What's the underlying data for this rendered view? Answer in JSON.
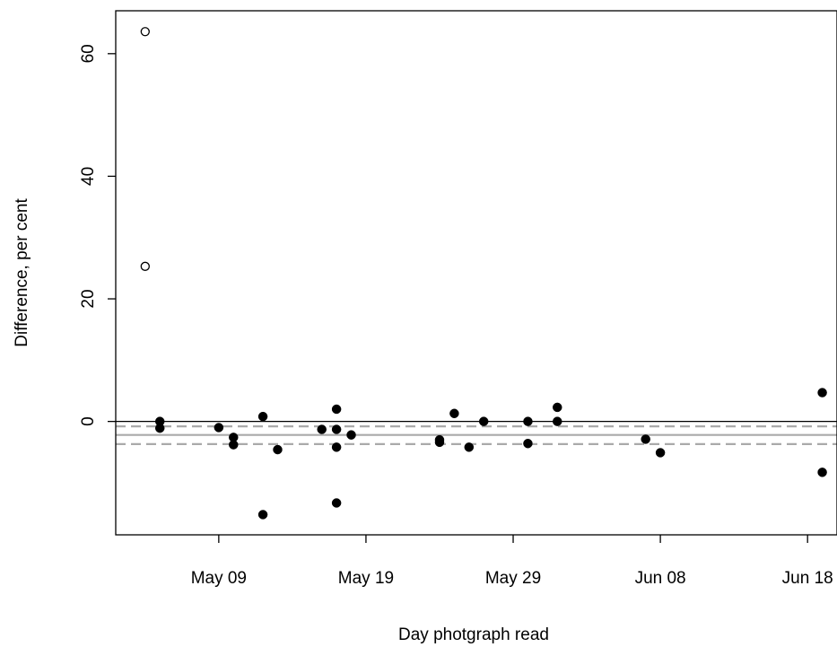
{
  "chart_data": {
    "type": "scatter",
    "title": "",
    "xlabel": "Day photgraph read",
    "ylabel": "Difference, per cent",
    "x_axis_type": "date",
    "xlim": [
      "2016-05-02",
      "2016-06-20"
    ],
    "ylim": [
      -18.5,
      67
    ],
    "x_ticks": [
      {
        "date": "2016-05-09",
        "label": "May 09"
      },
      {
        "date": "2016-05-19",
        "label": "May 19"
      },
      {
        "date": "2016-05-29",
        "label": "May 29"
      },
      {
        "date": "2016-06-08",
        "label": "Jun 08"
      },
      {
        "date": "2016-06-18",
        "label": "Jun 18"
      }
    ],
    "y_ticks": [
      {
        "value": 0,
        "label": "0"
      },
      {
        "value": 20,
        "label": "20"
      },
      {
        "value": 40,
        "label": "40"
      },
      {
        "value": 60,
        "label": "60"
      }
    ],
    "grid": false,
    "series": [
      {
        "marker": "open-circle",
        "points": [
          {
            "x": "2016-05-04",
            "y": 63.6
          },
          {
            "x": "2016-05-04",
            "y": 25.3
          }
        ]
      },
      {
        "marker": "filled-circle",
        "points": [
          {
            "x": "2016-05-05",
            "y": 0.0
          },
          {
            "x": "2016-05-05",
            "y": -1.1
          },
          {
            "x": "2016-05-09",
            "y": -1.0
          },
          {
            "x": "2016-05-10",
            "y": -2.6
          },
          {
            "x": "2016-05-10",
            "y": -3.8
          },
          {
            "x": "2016-05-12",
            "y": 0.8
          },
          {
            "x": "2016-05-12",
            "y": -15.2
          },
          {
            "x": "2016-05-13",
            "y": -4.6
          },
          {
            "x": "2016-05-16",
            "y": -1.3
          },
          {
            "x": "2016-05-17",
            "y": 2.0
          },
          {
            "x": "2016-05-17",
            "y": -1.3
          },
          {
            "x": "2016-05-17",
            "y": -4.2
          },
          {
            "x": "2016-05-17",
            "y": -13.3
          },
          {
            "x": "2016-05-18",
            "y": -2.2
          },
          {
            "x": "2016-05-24",
            "y": -3.0
          },
          {
            "x": "2016-05-24",
            "y": -3.4
          },
          {
            "x": "2016-05-25",
            "y": 1.3
          },
          {
            "x": "2016-05-26",
            "y": -4.2
          },
          {
            "x": "2016-05-27",
            "y": 0.0
          },
          {
            "x": "2016-05-30",
            "y": 0.0
          },
          {
            "x": "2016-05-30",
            "y": -3.6
          },
          {
            "x": "2016-06-01",
            "y": 2.3
          },
          {
            "x": "2016-06-01",
            "y": 0.0
          },
          {
            "x": "2016-06-07",
            "y": -2.9
          },
          {
            "x": "2016-06-08",
            "y": -5.1
          },
          {
            "x": "2016-06-19",
            "y": 4.7
          },
          {
            "x": "2016-06-19",
            "y": -8.3
          }
        ]
      }
    ],
    "reference_lines": [
      {
        "y": 0,
        "color": "#000000",
        "style": "solid"
      },
      {
        "y": -2.2,
        "color": "#aaaaaa",
        "style": "solid"
      },
      {
        "y": -0.8,
        "color": "#aaaaaa",
        "style": "dashed"
      },
      {
        "y": -3.7,
        "color": "#aaaaaa",
        "style": "dashed"
      }
    ]
  }
}
